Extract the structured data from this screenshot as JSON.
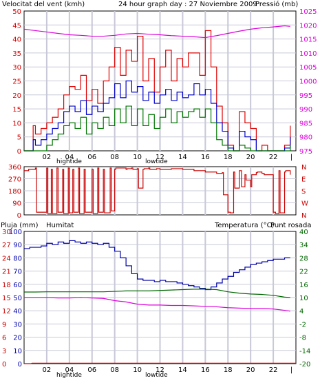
{
  "header": {
    "wind_label": "Velocitat del vent (kmh)",
    "title": "24 hour graph day : 27 Noviembre 2009",
    "pressure_label": "Pressió (mb)"
  },
  "tide_labels": {
    "high": "hightide",
    "low": "lowtide"
  },
  "section3_labels": {
    "rain": "Pluja (mm)",
    "humidity": "Humitat",
    "temperature": "Temperatura (°C)",
    "dewpoint": "Punt rosada"
  },
  "colors": {
    "wind_gust": "#e00000",
    "wind_avg": "#0000cc",
    "wind_min": "#007700",
    "pressure": "#dd00dd",
    "direction": "#cc0000",
    "rain": "#cc0000",
    "humidity": "#0000aa",
    "temperature": "#006600",
    "dewpoint": "#dd00dd",
    "grid": "#c8c8d8",
    "frame": "#000000"
  },
  "chart_data": [
    {
      "type": "line",
      "series": [
        {
          "name": "Velocitat del vent (kmh)",
          "role": "gust",
          "x": [
            0,
            0.5,
            0.8,
            1,
            1.5,
            2,
            2.5,
            3,
            3.5,
            4,
            4.5,
            5,
            5.5,
            6,
            6.5,
            7,
            7.5,
            8,
            8.5,
            9,
            9.5,
            10,
            10.5,
            11,
            11.5,
            12,
            12.5,
            13,
            13.5,
            14,
            14.5,
            15,
            15.5,
            16,
            16.5,
            17,
            17.5,
            18,
            18.5,
            19,
            19.5,
            20,
            20.5,
            21,
            21.5,
            22,
            22.5,
            23,
            23.5
          ],
          "values": [
            0,
            0,
            9,
            6,
            8,
            10,
            12,
            15,
            20,
            23,
            22,
            27,
            18,
            22,
            17,
            25,
            30,
            37,
            27,
            36,
            32,
            41,
            25,
            33,
            21,
            30,
            36,
            25,
            33,
            30,
            35,
            35,
            27,
            43,
            30,
            16,
            10,
            2,
            0,
            14,
            10,
            8,
            0,
            2,
            0,
            0,
            0,
            2,
            9
          ]
        },
        {
          "name": "avg",
          "role": "average",
          "x": [
            0,
            0.5,
            0.8,
            1,
            1.5,
            2,
            2.5,
            3,
            3.5,
            4,
            4.5,
            5,
            5.5,
            6,
            6.5,
            7,
            7.5,
            8,
            8.5,
            9,
            9.5,
            10,
            10.5,
            11,
            11.5,
            12,
            12.5,
            13,
            13.5,
            14,
            14.5,
            15,
            15.5,
            16,
            16.5,
            17,
            17.5,
            18,
            18.5,
            19,
            19.5,
            20,
            20.5,
            21,
            21.5,
            22,
            22.5,
            23,
            23.5
          ],
          "values": [
            0,
            0,
            4,
            2,
            4,
            6,
            8,
            10,
            14,
            16,
            14,
            18,
            13,
            16,
            14,
            17,
            19,
            24,
            19,
            25,
            21,
            23,
            18,
            21,
            17,
            20,
            22,
            18,
            21,
            19,
            20,
            24,
            20,
            22,
            17,
            10,
            7,
            1,
            0,
            7,
            5,
            4,
            0,
            0,
            0,
            0,
            0,
            1,
            5
          ]
        },
        {
          "name": "min",
          "role": "minimum",
          "x": [
            0,
            0.5,
            0.8,
            1,
            1.5,
            2,
            2.5,
            3,
            3.5,
            4,
            4.5,
            5,
            5.5,
            6,
            6.5,
            7,
            7.5,
            8,
            8.5,
            9,
            9.5,
            10,
            10.5,
            11,
            11.5,
            12,
            12.5,
            13,
            13.5,
            14,
            14.5,
            15,
            15.5,
            16,
            16.5,
            17,
            17.5,
            18,
            18.5,
            19,
            19.5,
            20,
            20.5,
            21,
            21.5,
            22,
            22.5,
            23,
            23.5
          ],
          "values": [
            0,
            0,
            0,
            0,
            0,
            2,
            4,
            6,
            9,
            10,
            8,
            12,
            6,
            10,
            8,
            12,
            9,
            15,
            10,
            16,
            9,
            15,
            9,
            13,
            8,
            12,
            15,
            10,
            14,
            12,
            14,
            15,
            12,
            15,
            10,
            4,
            2,
            0,
            0,
            2,
            1,
            0,
            0,
            0,
            0,
            0,
            0,
            0,
            2
          ]
        },
        {
          "name": "Pressió (mb)",
          "role": "pressure",
          "axis": "right",
          "x": [
            0,
            1,
            2,
            3,
            4,
            5,
            6,
            7,
            8,
            9,
            10,
            11,
            12,
            13,
            14,
            15,
            16,
            17,
            18,
            19,
            20,
            21,
            22,
            23,
            23.5
          ],
          "values": [
            1018.5,
            1018,
            1017.5,
            1017,
            1016.5,
            1016.3,
            1016,
            1016,
            1016.3,
            1016.8,
            1017,
            1016.7,
            1016.5,
            1016.2,
            1016,
            1015.8,
            1015.5,
            1016.2,
            1017,
            1017.8,
            1018.5,
            1019,
            1019.3,
            1019.7,
            1019.5
          ]
        }
      ],
      "x_ticks": [
        "02",
        "04",
        "06",
        "08",
        "10",
        "12",
        "14",
        "16",
        "18",
        "20",
        "22"
      ],
      "y_ticks_left": [
        "0",
        "5",
        "10",
        "15",
        "20",
        "25",
        "30",
        "35",
        "40",
        "45",
        "50"
      ],
      "y_ticks_right": [
        "975",
        "980",
        "985",
        "990",
        "995",
        "1000",
        "1005",
        "1010",
        "1015",
        "1020",
        "1025"
      ],
      "xlim": [
        0,
        24
      ],
      "ylim": [
        0,
        50
      ],
      "ylim_right": [
        975,
        1025
      ],
      "grid": true
    },
    {
      "type": "line",
      "series": [
        {
          "name": "direction",
          "role": "direction",
          "x": [
            0,
            0.4,
            1.0,
            1.1,
            1.5,
            2.0,
            2.1,
            2.4,
            2.5,
            2.9,
            3.0,
            3.4,
            3.5,
            3.9,
            4.0,
            4.3,
            4.4,
            4.8,
            4.9,
            5.3,
            5.4,
            6.0,
            6.1,
            6.5,
            6.6,
            7.0,
            7.1,
            7.6,
            7.7,
            8.0,
            8.1,
            9.0,
            9.1,
            9.5,
            9.6,
            10.0,
            10.1,
            10.5,
            10.6,
            11.0,
            11.1,
            11.6,
            11.7,
            12.0,
            13.0,
            14.0,
            15.0,
            16.0,
            17.0,
            17.5,
            17.6,
            18.0,
            18.2,
            18.5,
            18.6,
            19.0,
            19.2,
            19.5,
            19.6,
            20.0,
            20.1,
            20.5,
            20.6,
            21.0,
            21.2,
            22.0,
            22.2,
            22.5,
            22.6,
            23.0,
            23.1,
            23.5
          ],
          "values": [
            330,
            340,
            350,
            20,
            20,
            350,
            10,
            340,
            10,
            350,
            20,
            340,
            10,
            350,
            15,
            340,
            20,
            350,
            10,
            340,
            20,
            340,
            10,
            350,
            20,
            340,
            15,
            350,
            30,
            340,
            350,
            340,
            345,
            350,
            340,
            345,
            200,
            340,
            345,
            350,
            340,
            340,
            345,
            340,
            345,
            340,
            330,
            320,
            310,
            315,
            150,
            20,
            15,
            320,
            200,
            330,
            210,
            300,
            260,
            210,
            300,
            315,
            320,
            310,
            300,
            20,
            10,
            330,
            15,
            320,
            330,
            300
          ]
        }
      ],
      "y_ticks": [
        "0",
        "90",
        "180",
        "270",
        "360"
      ],
      "compass": [
        "N",
        "W",
        "S",
        "E",
        "N"
      ],
      "xlim": [
        0,
        24
      ],
      "ylim": [
        0,
        360
      ],
      "grid": true
    },
    {
      "type": "line",
      "series": [
        {
          "name": "Humitat",
          "role": "humidity",
          "x": [
            0,
            0.5,
            1,
            1.5,
            2,
            2.5,
            3,
            3.5,
            4,
            4.5,
            5,
            5.5,
            6,
            6.5,
            7,
            7.5,
            8,
            8.5,
            9,
            9.5,
            10,
            10.5,
            11,
            11.5,
            12,
            12.5,
            13,
            13.5,
            14,
            14.5,
            15,
            15.5,
            16,
            16.5,
            17,
            17.5,
            18,
            18.5,
            19,
            19.5,
            20,
            20.5,
            21,
            21.5,
            22,
            22.5,
            23,
            23.5
          ],
          "values": [
            87,
            88,
            88,
            89,
            91,
            90,
            92,
            91,
            93,
            92,
            91,
            92,
            91,
            90,
            91,
            88,
            85,
            80,
            74,
            68,
            64,
            63,
            63,
            62,
            63,
            62,
            62,
            61,
            60,
            59,
            58,
            57,
            56,
            58,
            61,
            64,
            66,
            69,
            71,
            73,
            75,
            76,
            77,
            78,
            79,
            79,
            80,
            80
          ]
        },
        {
          "name": "Temperatura (°C)",
          "role": "temperature",
          "axis": "right",
          "x": [
            0,
            1,
            2,
            3,
            4,
            5,
            6,
            7,
            8,
            9,
            10,
            11,
            12,
            13,
            14,
            15,
            16,
            17,
            18,
            19,
            20,
            21,
            22,
            23,
            23.5
          ],
          "values": [
            12.5,
            12.5,
            12.6,
            12.6,
            12.6,
            12.6,
            12.6,
            12.6,
            12.8,
            13,
            13,
            13,
            13.2,
            13.4,
            13.6,
            13.8,
            13.8,
            13.6,
            12.6,
            12,
            11.6,
            11.4,
            11,
            10.2,
            10.0
          ]
        },
        {
          "name": "Punt rosada",
          "role": "dewpoint",
          "axis": "right",
          "x": [
            0,
            1,
            2,
            3,
            4,
            5,
            6,
            7,
            8,
            9,
            10,
            11,
            12,
            13,
            14,
            15,
            16,
            17,
            18,
            19,
            20,
            21,
            22,
            23,
            23.5
          ],
          "values": [
            10,
            10,
            10,
            9.8,
            9.8,
            10,
            9.8,
            9.6,
            8.6,
            8,
            7,
            6.6,
            6.6,
            6.4,
            6.4,
            6.2,
            6,
            5.8,
            5.4,
            5.2,
            5,
            5,
            4.8,
            4.2,
            3.8
          ]
        },
        {
          "name": "Pluja (mm)",
          "role": "rain",
          "x": [
            0,
            0.6,
            0.7,
            24
          ],
          "values": [
            0,
            0,
            0.1,
            0.1
          ]
        }
      ],
      "y_ticks_left_rain": [
        "0",
        "3",
        "6",
        "9",
        "12",
        "15",
        "18",
        "21",
        "24",
        "27",
        "30"
      ],
      "y_ticks_left_humidity": [
        "0",
        "10",
        "20",
        "30",
        "40",
        "50",
        "60",
        "70",
        "80",
        "90",
        "100"
      ],
      "y_ticks_right": [
        "-20",
        "-14",
        "-8",
        "-2",
        "4",
        "10",
        "16",
        "22",
        "28",
        "34",
        "40"
      ],
      "xlim": [
        0,
        24
      ],
      "ylim_rain": [
        0,
        30
      ],
      "ylim_humidity": [
        0,
        100
      ],
      "ylim_right": [
        -20,
        40
      ],
      "grid": true
    }
  ]
}
